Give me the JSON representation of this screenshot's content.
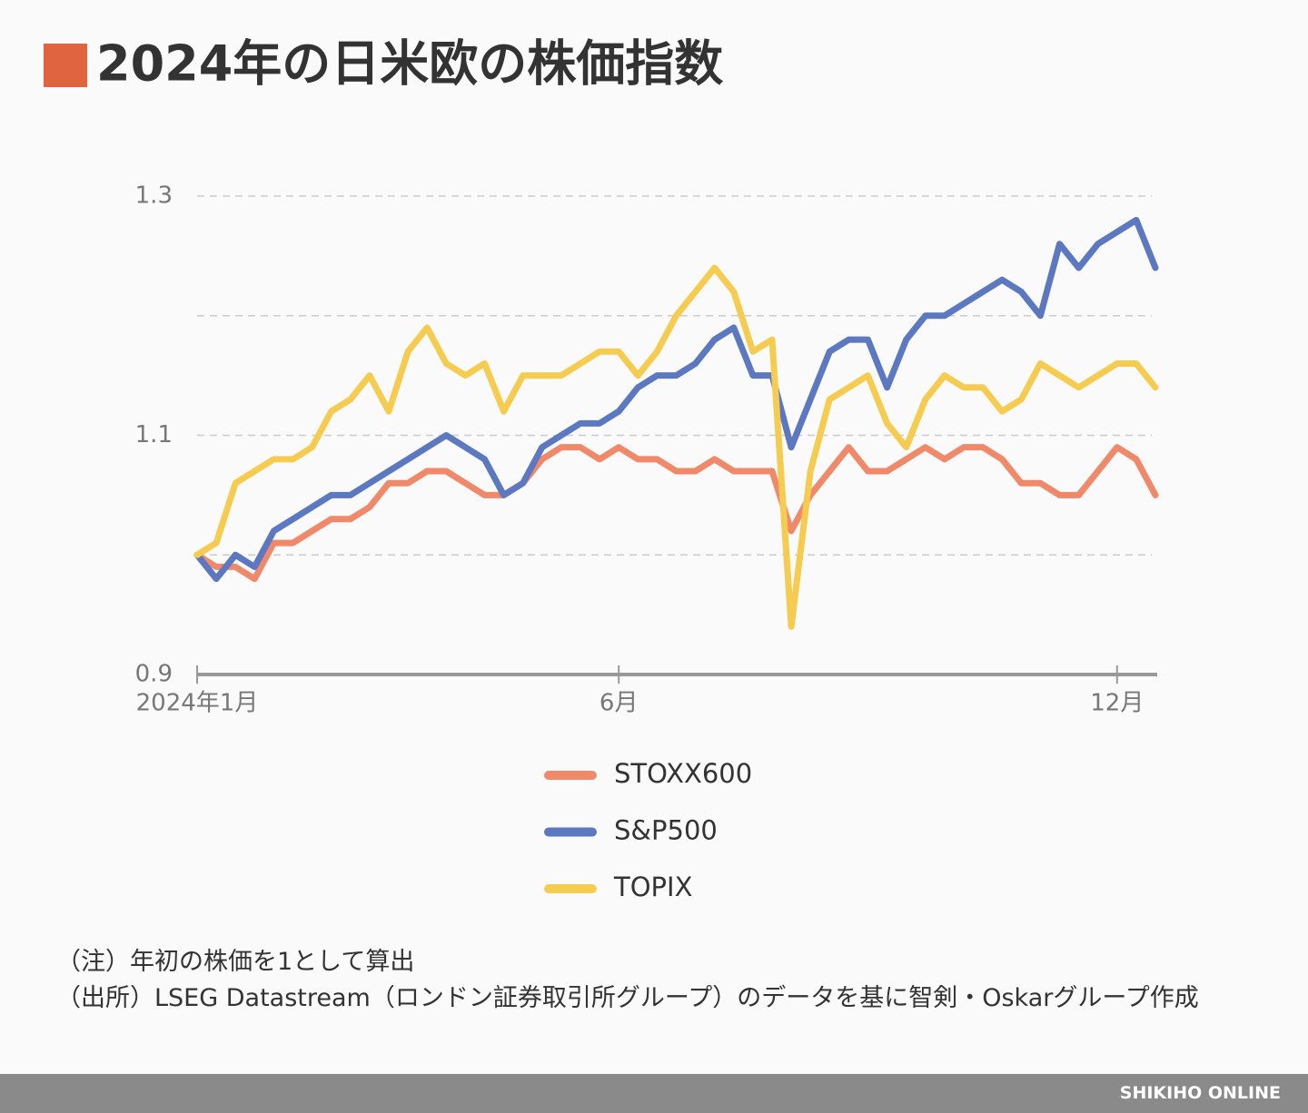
{
  "title": "2024年の日米欧の株価指数",
  "chart_data": {
    "type": "line",
    "categories": [
      "2024年1月",
      null,
      null,
      null,
      null,
      null,
      null,
      null,
      null,
      null,
      null,
      null,
      null,
      null,
      null,
      null,
      null,
      null,
      null,
      null,
      null,
      null,
      "6月",
      null,
      null,
      null,
      null,
      null,
      null,
      null,
      null,
      null,
      null,
      null,
      null,
      null,
      null,
      null,
      null,
      null,
      null,
      null,
      null,
      null,
      null,
      null,
      null,
      null,
      "12月",
      null,
      null
    ],
    "ylim": [
      0.9,
      1.3
    ],
    "yticks": [
      0.9,
      1.1,
      1.3
    ],
    "grid_lines": [
      1,
      1.2
    ],
    "grid": true,
    "legend": "bottom",
    "series": [
      {
        "name": "STOXX600",
        "color": "#f0896a",
        "values": [
          1.0,
          0.99,
          0.99,
          0.98,
          1.01,
          1.01,
          1.02,
          1.03,
          1.03,
          1.04,
          1.06,
          1.06,
          1.07,
          1.07,
          1.06,
          1.05,
          1.05,
          1.06,
          1.08,
          1.09,
          1.09,
          1.08,
          1.09,
          1.08,
          1.08,
          1.07,
          1.07,
          1.08,
          1.07,
          1.07,
          1.07,
          1.02,
          1.05,
          1.07,
          1.09,
          1.07,
          1.07,
          1.08,
          1.09,
          1.08,
          1.09,
          1.09,
          1.08,
          1.06,
          1.06,
          1.05,
          1.05,
          1.07,
          1.09,
          1.08,
          1.05
        ]
      },
      {
        "name": "S&P500",
        "color": "#5b78c0",
        "values": [
          1.0,
          0.98,
          1.0,
          0.99,
          1.02,
          1.03,
          1.04,
          1.05,
          1.05,
          1.06,
          1.07,
          1.08,
          1.09,
          1.1,
          1.09,
          1.08,
          1.05,
          1.06,
          1.09,
          1.1,
          1.11,
          1.11,
          1.12,
          1.14,
          1.15,
          1.15,
          1.16,
          1.18,
          1.19,
          1.15,
          1.15,
          1.09,
          1.13,
          1.17,
          1.18,
          1.18,
          1.14,
          1.18,
          1.2,
          1.2,
          1.21,
          1.22,
          1.23,
          1.22,
          1.2,
          1.26,
          1.24,
          1.26,
          1.27,
          1.28,
          1.24
        ]
      },
      {
        "name": "TOPIX",
        "color": "#f5cc50",
        "values": [
          1.0,
          1.01,
          1.06,
          1.07,
          1.08,
          1.08,
          1.09,
          1.12,
          1.13,
          1.15,
          1.12,
          1.17,
          1.19,
          1.16,
          1.15,
          1.16,
          1.12,
          1.15,
          1.15,
          1.15,
          1.16,
          1.17,
          1.17,
          1.15,
          1.17,
          1.2,
          1.22,
          1.24,
          1.22,
          1.17,
          1.18,
          0.94,
          1.07,
          1.13,
          1.14,
          1.15,
          1.11,
          1.09,
          1.13,
          1.15,
          1.14,
          1.14,
          1.12,
          1.13,
          1.16,
          1.15,
          1.14,
          1.15,
          1.16,
          1.16,
          1.14
        ]
      }
    ]
  },
  "notes": [
    "（注）年初の株価を1として算出",
    "（出所）LSEG Datastream（ロンドン証券取引所グループ）のデータを基に智剣・Oskarグループ作成"
  ],
  "footer": "SHIKIHO ONLINE"
}
